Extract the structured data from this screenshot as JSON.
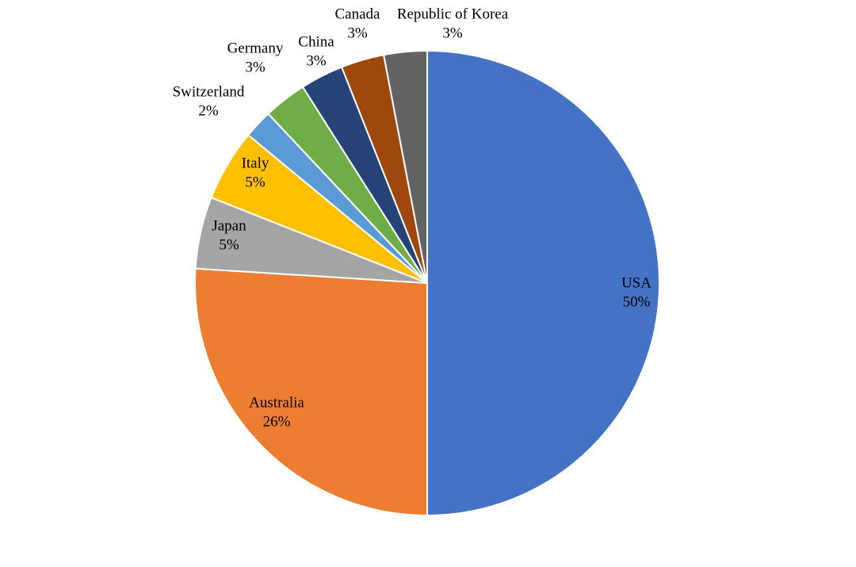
{
  "chart_data": {
    "type": "pie",
    "categories": [
      "USA",
      "Australia",
      "Japan",
      "Italy",
      "Switzerland",
      "Germany",
      "China",
      "Canada",
      "Republic of Korea"
    ],
    "values": [
      50,
      26,
      5,
      5,
      2,
      3,
      3,
      3,
      3
    ],
    "value_labels": [
      "50%",
      "26%",
      "5%",
      "5%",
      "2%",
      "3%",
      "3%",
      "3%",
      "3%"
    ],
    "colors": [
      "#4472c4",
      "#ed7d31",
      "#a5a5a5",
      "#ffc000",
      "#5b9bd5",
      "#70ad47",
      "#264478",
      "#9e480e",
      "#636363"
    ]
  }
}
